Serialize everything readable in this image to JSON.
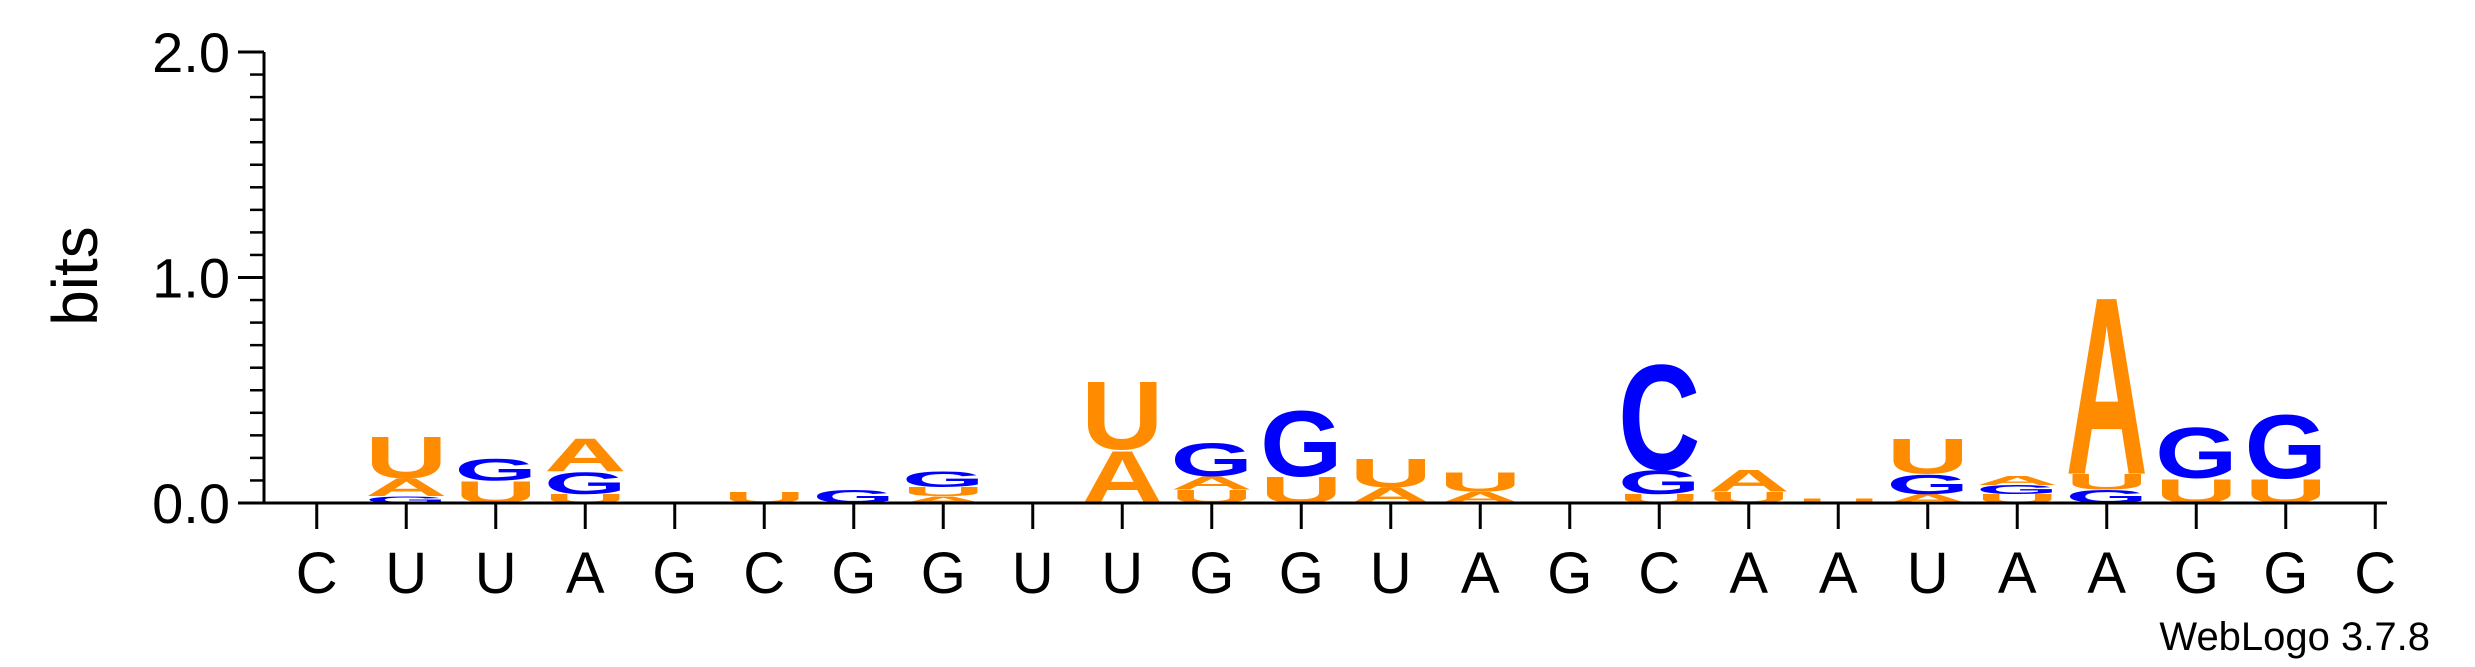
{
  "chart_data": {
    "type": "sequence-logo",
    "ylabel": "bits",
    "ylim": [
      0,
      2.0
    ],
    "yticks": [
      "0.0",
      "1.0",
      "2.0"
    ],
    "colors": {
      "A": "#ff8c00",
      "U": "#ff8c00",
      "G": "#0000ff",
      "C": "#0000ff"
    },
    "positions": [
      {
        "label": "C",
        "stack": []
      },
      {
        "label": "U",
        "stack": [
          [
            "G",
            0.03
          ],
          [
            "A",
            0.08
          ],
          [
            "U",
            0.19
          ]
        ]
      },
      {
        "label": "U",
        "stack": [
          [
            "U",
            0.1
          ],
          [
            "G",
            0.1
          ]
        ]
      },
      {
        "label": "A",
        "stack": [
          [
            "U",
            0.04
          ],
          [
            "G",
            0.1
          ],
          [
            "A",
            0.15
          ]
        ]
      },
      {
        "label": "G",
        "stack": []
      },
      {
        "label": "C",
        "stack": [
          [
            "U",
            0.05
          ]
        ]
      },
      {
        "label": "G",
        "stack": [
          [
            "G",
            0.06
          ]
        ]
      },
      {
        "label": "G",
        "stack": [
          [
            "A",
            0.03
          ],
          [
            "U",
            0.04
          ],
          [
            "G",
            0.07
          ]
        ]
      },
      {
        "label": "U",
        "stack": []
      },
      {
        "label": "U",
        "stack": [
          [
            "A",
            0.24
          ],
          [
            "U",
            0.31
          ]
        ]
      },
      {
        "label": "G",
        "stack": [
          [
            "U",
            0.06
          ],
          [
            "A",
            0.06
          ],
          [
            "G",
            0.15
          ]
        ]
      },
      {
        "label": "G",
        "stack": [
          [
            "U",
            0.12
          ],
          [
            "G",
            0.3
          ]
        ]
      },
      {
        "label": "U",
        "stack": [
          [
            "A",
            0.07
          ],
          [
            "U",
            0.13
          ]
        ]
      },
      {
        "label": "A",
        "stack": [
          [
            "A",
            0.05
          ],
          [
            "U",
            0.09
          ]
        ]
      },
      {
        "label": "G",
        "stack": []
      },
      {
        "label": "C",
        "stack": [
          [
            "U",
            0.04
          ],
          [
            "G",
            0.11
          ],
          [
            "C",
            0.48
          ]
        ]
      },
      {
        "label": "A",
        "stack": [
          [
            "U",
            0.05
          ],
          [
            "A",
            0.1
          ]
        ]
      },
      {
        "label": "A",
        "stack": [
          [
            "U",
            0.02
          ]
        ]
      },
      {
        "label": "U",
        "stack": [
          [
            "A",
            0.04
          ],
          [
            "G",
            0.09
          ],
          [
            "U",
            0.16
          ]
        ]
      },
      {
        "label": "A",
        "stack": [
          [
            "U",
            0.04
          ],
          [
            "G",
            0.04
          ],
          [
            "A",
            0.04
          ]
        ]
      },
      {
        "label": "A",
        "stack": [
          [
            "G",
            0.06
          ],
          [
            "U",
            0.07
          ],
          [
            "A",
            0.81
          ]
        ]
      },
      {
        "label": "G",
        "stack": [
          [
            "U",
            0.11
          ],
          [
            "G",
            0.23
          ]
        ]
      },
      {
        "label": "G",
        "stack": [
          [
            "U",
            0.11
          ],
          [
            "G",
            0.29
          ]
        ]
      },
      {
        "label": "C",
        "stack": []
      }
    ]
  },
  "credit": "WebLogo 3.7.8"
}
